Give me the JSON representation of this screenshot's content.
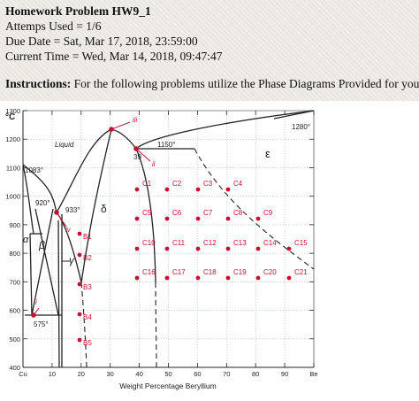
{
  "header": {
    "title": "Homework Problem HW9_1",
    "attempts": "Attemps Used = 1/6",
    "due_date": "Due Date = Sat, Mar 17, 2018, 23:59:00",
    "current_time": "Current Time = Wed, Mar 14, 2018, 09:47:47"
  },
  "instructions": {
    "label": "Instructions:",
    "text": "For the following problems utilize the Phase Diagrams Provided for you."
  },
  "diagram": {
    "y_unit": "°C",
    "x_title": "Weight Percentage Beryllium",
    "y_ticks": [
      "1300",
      "1200",
      "1100",
      "1000",
      "900",
      "800",
      "700",
      "600",
      "500",
      "400"
    ],
    "x_ticks": [
      "Cu",
      "10",
      "20",
      "30",
      "40",
      "50",
      "60",
      "70",
      "80",
      "90",
      "Be"
    ],
    "labels": {
      "liquid": "Liquid",
      "epsilon": "ε",
      "delta": "δ",
      "alpha": "α",
      "beta": "β",
      "gamma": "γ",
      "t1083": "1083°",
      "t920": "920°",
      "t933": "933°",
      "t575": "575°",
      "t1150": "1150°",
      "t1280": "1280°",
      "c39": "39"
    },
    "roman_points": [
      {
        "label": "i"
      },
      {
        "label": "ii"
      },
      {
        "label": "iii"
      },
      {
        "label": "iv"
      }
    ],
    "points": [
      {
        "label": "C1"
      },
      {
        "label": "C2"
      },
      {
        "label": "C3"
      },
      {
        "label": "C4"
      },
      {
        "label": "C5"
      },
      {
        "label": "C6"
      },
      {
        "label": "C7"
      },
      {
        "label": "C8"
      },
      {
        "label": "C9"
      },
      {
        "label": "C10"
      },
      {
        "label": "C11"
      },
      {
        "label": "C12"
      },
      {
        "label": "C13"
      },
      {
        "label": "C14"
      },
      {
        "label": "C15"
      },
      {
        "label": "C16"
      },
      {
        "label": "C17"
      },
      {
        "label": "C18"
      },
      {
        "label": "C19"
      },
      {
        "label": "C20"
      },
      {
        "label": "C21"
      },
      {
        "label": "B1"
      },
      {
        "label": "B2"
      },
      {
        "label": "B3"
      },
      {
        "label": "B4"
      },
      {
        "label": "B5"
      }
    ],
    "colors": {
      "point": "#c8102e",
      "line": "#222222",
      "grid": "#8aa6c8"
    }
  }
}
